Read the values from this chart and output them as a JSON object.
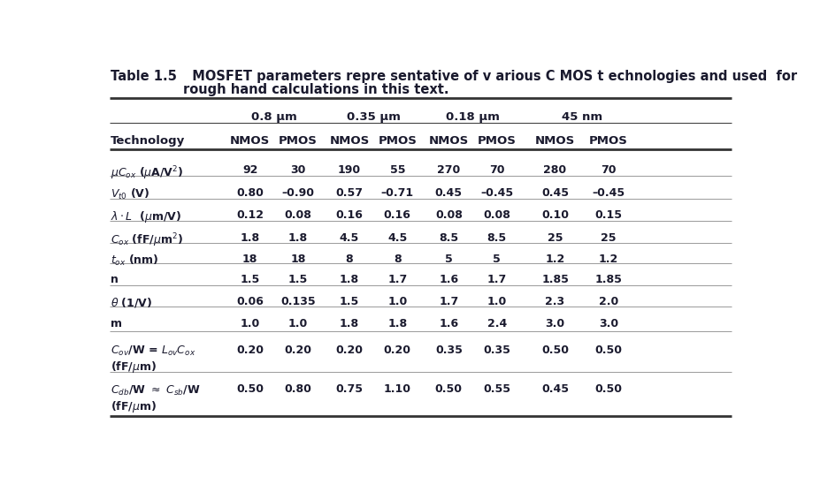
{
  "title_bold": "Table 1.5",
  "title_rest": "  MOSFET parameters repre sentative of v arious C MOS t echnologies and used  for",
  "title_line2": "rough hand calculations in this text.",
  "tech_headers": [
    "0.8 μm",
    "0.35 μm",
    "0.18 μm",
    "45 nm"
  ],
  "col_headers": [
    "Technology",
    "NMOS",
    "PMOS",
    "NMOS",
    "PMOS",
    "NMOS",
    "PMOS",
    "NMOS",
    "PMOS"
  ],
  "row_labels_math": [
    "$\\mu C_{ox}$ ($\\mu$A/V$^2$)",
    "$V_{t0}$ (V)",
    "$\\lambda \\cdot L$  ($\\mu$m/V)",
    "$C_{ox}$ (fF/$\\mu$m$^2$)",
    "$t_{ox}$ (nm)",
    "n",
    "$\\theta$ (1/V)",
    "m",
    "$C_{ov}$/W = $L_{ov}C_{ox}$",
    "(fF/$\\mu$m)",
    "$C_{db}$/W $\\approx$ $C_{sb}$/W",
    "(fF/$\\mu$m)"
  ],
  "data": [
    [
      "92",
      "30",
      "190",
      "55",
      "270",
      "70",
      "280",
      "70"
    ],
    [
      "0.80",
      "–0.90",
      "0.57",
      "–0.71",
      "0.45",
      "–0.45",
      "0.45",
      "–0.45"
    ],
    [
      "0.12",
      "0.08",
      "0.16",
      "0.16",
      "0.08",
      "0.08",
      "0.10",
      "0.15"
    ],
    [
      "1.8",
      "1.8",
      "4.5",
      "4.5",
      "8.5",
      "8.5",
      "25",
      "25"
    ],
    [
      "18",
      "18",
      "8",
      "8",
      "5",
      "5",
      "1.2",
      "1.2"
    ],
    [
      "1.5",
      "1.5",
      "1.8",
      "1.7",
      "1.6",
      "1.7",
      "1.85",
      "1.85"
    ],
    [
      "0.06",
      "0.135",
      "1.5",
      "1.0",
      "1.7",
      "1.0",
      "2.3",
      "2.0"
    ],
    [
      "1.0",
      "1.0",
      "1.8",
      "1.8",
      "1.6",
      "2.4",
      "3.0",
      "3.0"
    ],
    [
      "0.20",
      "0.20",
      "0.20",
      "0.20",
      "0.35",
      "0.35",
      "0.50",
      "0.50"
    ],
    [
      "",
      "",
      "",
      "",
      "",
      "",
      "",
      ""
    ],
    [
      "0.50",
      "0.80",
      "0.75",
      "1.10",
      "0.50",
      "0.55",
      "0.45",
      "0.50"
    ],
    [
      "",
      "",
      "",
      "",
      "",
      "",
      "",
      ""
    ]
  ],
  "bg_color": "#ffffff",
  "text_color": "#1a1a2e",
  "line_color": "#333333"
}
